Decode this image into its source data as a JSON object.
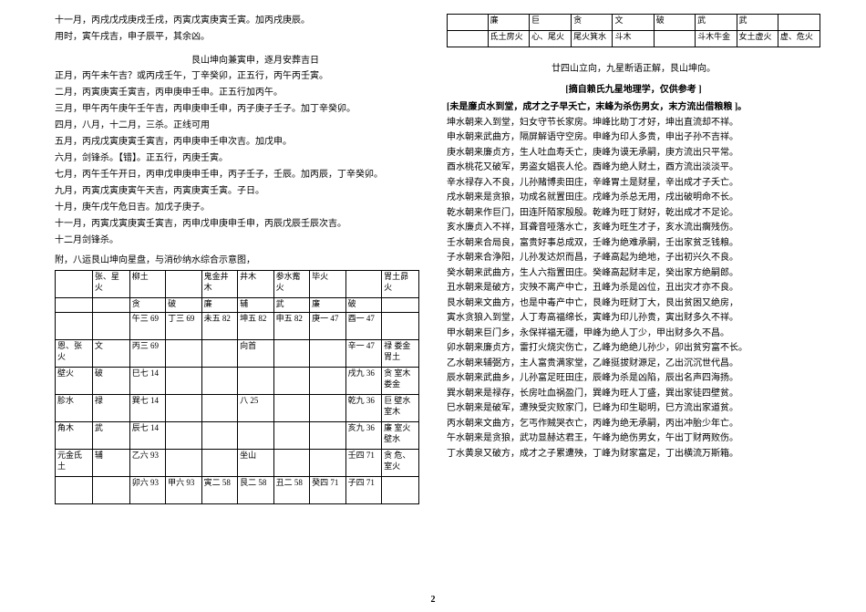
{
  "left": {
    "intro_lines": [
      "十一月，丙戌戊戌庚戌壬戌，丙寅戊寅庚寅壬寅。加丙戌庚辰。",
      "用时，寅午戌吉，申子辰平，其余凶。"
    ],
    "section_title": "艮山坤向兼寅申，逐月安葬吉日",
    "month_lines": [
      "正月，丙午未午吉？或丙戌壬午，丁辛癸卯，正五行，丙午丙壬寅。",
      "二月，丙寅庚寅壬寅吉，丙申庚申壬申。正五行加丙午。",
      "三月，甲午丙午庚午壬午吉，丙申庚申壬申，丙子庚子壬子。加丁辛癸卯。",
      "四月，八月，十二月，三杀。正线可用",
      "五月，丙戌戊寅庚寅壬寅吉，丙申庚申壬申次吉。加戊申。",
      "六月，剑锋杀。【错】。正五行，丙庚壬寅。",
      "七月，丙午壬午开日，丙申戊申庚申壬申，丙子壬子，壬辰。加丙辰，丁辛癸卯。",
      "九月，丙寅戊寅庚寅午天吉，丙寅庚寅壬寅。子日。",
      "十月，庚午戊午危日吉。加戊子庚子。",
      "十一月，丙寅戊寅庚寅壬寅吉，丙申戊申庚申壬申，丙辰戊辰壬辰次吉。",
      "十二月剑锋杀。"
    ],
    "appendix_title": "附，八运艮山坤向星盘，与消砂纳水综合示意图，",
    "table": {
      "rows": [
        [
          "",
          "张、星火",
          "柳土",
          "",
          "鬼金井木",
          "井木",
          "参水觜火",
          "毕火",
          "",
          "胃土昴火"
        ],
        [
          "",
          "",
          "贪",
          "破",
          "廉",
          "辅",
          "武",
          "廉",
          "破",
          ""
        ],
        [
          "",
          "",
          "午三 69",
          "丁三 69",
          "未五 82",
          "坤五 82",
          "申五 82",
          "庚一 47",
          "酉一 47",
          ""
        ],
        [
          "恩、张火",
          "文",
          "丙三 69",
          "",
          "",
          "向首",
          "",
          "",
          "辛一 47",
          "禄 娄金胃土"
        ],
        [
          "壁火",
          "破",
          "巳七 14",
          "",
          "",
          "",
          "",
          "",
          "戌九 36",
          "贪 室木娄金"
        ],
        [
          "胗水",
          "禄",
          "巽七 14",
          "",
          "",
          "八 25",
          "",
          "",
          "乾九 36",
          "巨 壁水室木"
        ],
        [
          "角木",
          "武",
          "辰七 14",
          "",
          "",
          "",
          "",
          "",
          "亥九 36",
          "廉 室火壁水"
        ],
        [
          "元金氐土",
          "辅",
          "乙六 93",
          "",
          "",
          "坐山",
          "",
          "",
          "壬四 71",
          "贪 危、室火"
        ],
        [
          "",
          "",
          "卯六 93",
          "甲六 93",
          "寅二 58",
          "艮二 58",
          "丑二 58",
          "癸四 71",
          "子四 71",
          ""
        ]
      ]
    }
  },
  "right": {
    "top_table": {
      "row1": [
        "",
        "廉",
        "巨",
        "贪",
        "文",
        "破",
        "武",
        "武",
        ""
      ],
      "row2": [
        "",
        "氐土房火",
        "心、尾火",
        "尾火箕水",
        "斗木",
        "",
        "斗木牛金",
        "女土虚火",
        "虚、危火"
      ]
    },
    "heading1": "廿四山立向，九星断语正解，艮山坤向。",
    "heading2": "[摘自赖氏九星地理学，仅供参考 ]",
    "bracket_open": "[未是廉贞水到堂，成才之子早夭亡，末峰为杀伤男女，末方流出借粮粮  ]。",
    "body_lines": [
      "坤水朝来入到堂，妇女守节长家房。坤峰比助丁才好，坤出直流却不祥。",
      "申水朝来武曲方，隔屏解语守空房。申峰为印人多贵，申出子孙不吉祥。",
      "庚水朝来廉贞方，生人吐血寿夭亡，庚峰为谟无承嗣，庚方流出只平常。",
      "酉水桃花又破军，男盗女娼丧人伦。酉峰为绝人财土，酉方流出淡淡平。",
      "辛水禄存入不良，儿孙赌博卖田庄，辛峰胃土是财星，辛出成才子夭亡。",
      "戌水朝来是贪狼，功成名就置田庄。戌峰为杀总无用，戌出破明命不长。",
      "乾水朝来作巨门，田连阡陌家殷殷。乾峰为旺丁财好，乾出成才不足论。",
      "亥水廉贞入不祥，耳聋音哑落水亡，亥峰为旺生才子，亥水流出瘸残伤。",
      "壬水朝来合局良，富贵好事总成双，壬峰为绝难承嗣，壬出家贫乏钱粮。",
      "子水朝来合浄阳，儿孙发达炽而昌，子峰高起为绝地，子出初兴久不良。",
      "癸水朝来武曲方，生人六指置田庄。癸峰高起财丰足，癸出家方绝嗣郎。",
      "丑水朝来是破方，灾殃不离产中亡，丑峰为杀是凶位，丑出灾才亦不良。",
      "艮水朝来文曲方，也是中毒产中亡，艮峰为旺财丁大，艮出贫困又绝房，",
      "寅水贪狼入到堂，人丁寿高福绵长，寅峰为印儿孙贵，寅出财多久不祥。",
      "甲水朝来巨门乡，永保祥福无疆，甲峰为绝人丁少，甲出财多久不昌。",
      "卯水朝来廉贞方，雷打火烧灾伤亡，乙峰为绝绝儿孙少，卯出贫穷富不长。",
      "乙水朝来辅弼方，主人富贵满家堂，乙峰挺拔财源足，乙出沉沉世代昌。",
      "辰水朝来武曲乡，儿孙富足旺田庄，辰峰为杀是凶陷，辰出名声四海扬。",
      "巽水朝来是禄存，长房吐血祸盈门，巽峰为旺人丁盛，巽出家徒四壁贫。",
      "巳水朝来是破军，遭殃受灾败家门，巳峰为印生聪明，巳方流出家道贫。",
      "丙水朝来文曲方，乞丐作贼哭衣亡，丙峰为绝无承嗣，丙出冲胎少年亡。",
      "午水朝来是贪狼，武功显赫达君王，午峰为绝伤男女，午出丁财两败伤。",
      "丁水黄泉又破方，成才之子累遭殃，丁峰为财家富足，丁出横流万斯箱。"
    ]
  },
  "page_number": "2"
}
